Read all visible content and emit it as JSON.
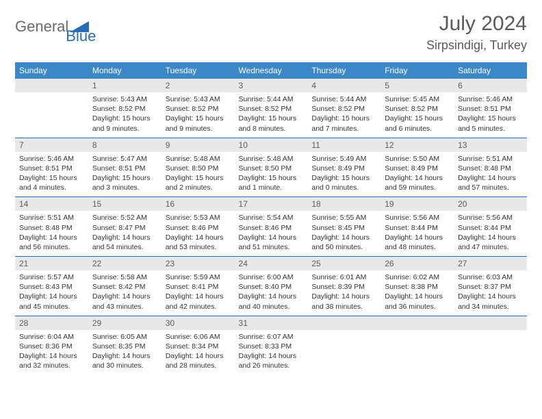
{
  "logo": {
    "text1": "General",
    "text2": "Blue"
  },
  "header": {
    "month_title": "July 2024",
    "location": "Sirpsindigi, Turkey"
  },
  "colors": {
    "header_bg": "#3b87c8",
    "header_text": "#ffffff",
    "daynum_bg": "#e8e8e8",
    "daynum_text": "#5a5a5a",
    "info_text": "#333333",
    "logo_gray": "#6a6a6a",
    "logo_blue": "#2a6db5",
    "week_divider": "#2a6db5",
    "background": "#ffffff"
  },
  "typography": {
    "month_title_size": 30,
    "location_size": 18,
    "day_header_size": 12,
    "daynum_size": 12,
    "info_size": 10.5
  },
  "day_names": [
    "Sunday",
    "Monday",
    "Tuesday",
    "Wednesday",
    "Thursday",
    "Friday",
    "Saturday"
  ],
  "weeks": [
    [
      null,
      {
        "n": "1",
        "sr": "5:43 AM",
        "ss": "8:52 PM",
        "dl": "15 hours and 9 minutes."
      },
      {
        "n": "2",
        "sr": "5:43 AM",
        "ss": "8:52 PM",
        "dl": "15 hours and 9 minutes."
      },
      {
        "n": "3",
        "sr": "5:44 AM",
        "ss": "8:52 PM",
        "dl": "15 hours and 8 minutes."
      },
      {
        "n": "4",
        "sr": "5:44 AM",
        "ss": "8:52 PM",
        "dl": "15 hours and 7 minutes."
      },
      {
        "n": "5",
        "sr": "5:45 AM",
        "ss": "8:52 PM",
        "dl": "15 hours and 6 minutes."
      },
      {
        "n": "6",
        "sr": "5:46 AM",
        "ss": "8:51 PM",
        "dl": "15 hours and 5 minutes."
      }
    ],
    [
      {
        "n": "7",
        "sr": "5:46 AM",
        "ss": "8:51 PM",
        "dl": "15 hours and 4 minutes."
      },
      {
        "n": "8",
        "sr": "5:47 AM",
        "ss": "8:51 PM",
        "dl": "15 hours and 3 minutes."
      },
      {
        "n": "9",
        "sr": "5:48 AM",
        "ss": "8:50 PM",
        "dl": "15 hours and 2 minutes."
      },
      {
        "n": "10",
        "sr": "5:48 AM",
        "ss": "8:50 PM",
        "dl": "15 hours and 1 minute."
      },
      {
        "n": "11",
        "sr": "5:49 AM",
        "ss": "8:49 PM",
        "dl": "15 hours and 0 minutes."
      },
      {
        "n": "12",
        "sr": "5:50 AM",
        "ss": "8:49 PM",
        "dl": "14 hours and 59 minutes."
      },
      {
        "n": "13",
        "sr": "5:51 AM",
        "ss": "8:48 PM",
        "dl": "14 hours and 57 minutes."
      }
    ],
    [
      {
        "n": "14",
        "sr": "5:51 AM",
        "ss": "8:48 PM",
        "dl": "14 hours and 56 minutes."
      },
      {
        "n": "15",
        "sr": "5:52 AM",
        "ss": "8:47 PM",
        "dl": "14 hours and 54 minutes."
      },
      {
        "n": "16",
        "sr": "5:53 AM",
        "ss": "8:46 PM",
        "dl": "14 hours and 53 minutes."
      },
      {
        "n": "17",
        "sr": "5:54 AM",
        "ss": "8:46 PM",
        "dl": "14 hours and 51 minutes."
      },
      {
        "n": "18",
        "sr": "5:55 AM",
        "ss": "8:45 PM",
        "dl": "14 hours and 50 minutes."
      },
      {
        "n": "19",
        "sr": "5:56 AM",
        "ss": "8:44 PM",
        "dl": "14 hours and 48 minutes."
      },
      {
        "n": "20",
        "sr": "5:56 AM",
        "ss": "8:44 PM",
        "dl": "14 hours and 47 minutes."
      }
    ],
    [
      {
        "n": "21",
        "sr": "5:57 AM",
        "ss": "8:43 PM",
        "dl": "14 hours and 45 minutes."
      },
      {
        "n": "22",
        "sr": "5:58 AM",
        "ss": "8:42 PM",
        "dl": "14 hours and 43 minutes."
      },
      {
        "n": "23",
        "sr": "5:59 AM",
        "ss": "8:41 PM",
        "dl": "14 hours and 42 minutes."
      },
      {
        "n": "24",
        "sr": "6:00 AM",
        "ss": "8:40 PM",
        "dl": "14 hours and 40 minutes."
      },
      {
        "n": "25",
        "sr": "6:01 AM",
        "ss": "8:39 PM",
        "dl": "14 hours and 38 minutes."
      },
      {
        "n": "26",
        "sr": "6:02 AM",
        "ss": "8:38 PM",
        "dl": "14 hours and 36 minutes."
      },
      {
        "n": "27",
        "sr": "6:03 AM",
        "ss": "8:37 PM",
        "dl": "14 hours and 34 minutes."
      }
    ],
    [
      {
        "n": "28",
        "sr": "6:04 AM",
        "ss": "8:36 PM",
        "dl": "14 hours and 32 minutes."
      },
      {
        "n": "29",
        "sr": "6:05 AM",
        "ss": "8:35 PM",
        "dl": "14 hours and 30 minutes."
      },
      {
        "n": "30",
        "sr": "6:06 AM",
        "ss": "8:34 PM",
        "dl": "14 hours and 28 minutes."
      },
      {
        "n": "31",
        "sr": "6:07 AM",
        "ss": "8:33 PM",
        "dl": "14 hours and 26 minutes."
      },
      null,
      null,
      null
    ]
  ],
  "labels": {
    "sunrise": "Sunrise:",
    "sunset": "Sunset:",
    "daylight": "Daylight:"
  }
}
